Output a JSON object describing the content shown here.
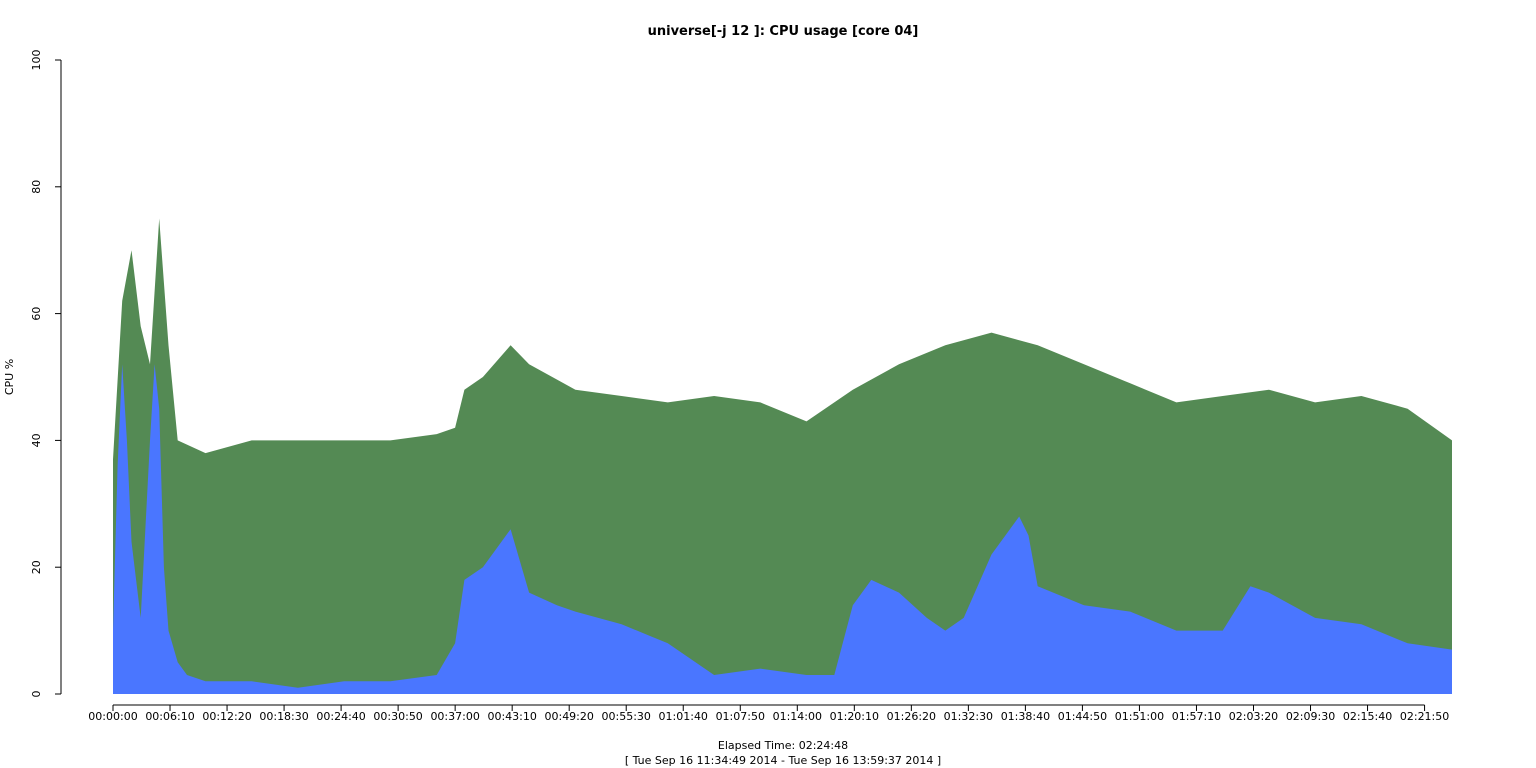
{
  "chart_data": {
    "type": "area",
    "title": "universe[-j 12  ]: CPU usage [core 04]",
    "ylabel": "CPU %",
    "xlabel": "Elapsed Time: 02:24:48",
    "subtitle": "[ Tue Sep 16 11:34:49 2014 - Tue Sep 16 13:59:37 2014 ]",
    "ylim": [
      0,
      100
    ],
    "xlim_seconds": [
      0,
      8688
    ],
    "y_ticks": [
      "0",
      "20",
      "40",
      "60",
      "80",
      "100"
    ],
    "x_ticks": [
      "00:00:00",
      "00:06:10",
      "00:12:20",
      "00:18:30",
      "00:24:40",
      "00:30:50",
      "00:37:00",
      "00:43:10",
      "00:49:20",
      "00:55:30",
      "01:01:40",
      "01:07:50",
      "01:14:00",
      "01:20:10",
      "01:26:20",
      "01:32:30",
      "01:38:40",
      "01:44:50",
      "01:51:00",
      "01:57:10",
      "02:03:20",
      "02:09:30",
      "02:15:40",
      "02:21:50"
    ],
    "colors": {
      "total": "#548a54",
      "base": "#4a76ff"
    },
    "series": [
      {
        "key": "total",
        "x": [
          "00:00:00",
          "00:01:00",
          "00:02:00",
          "00:03:00",
          "00:04:00",
          "00:05:00",
          "00:06:00",
          "00:07:00",
          "00:10:00",
          "00:15:00",
          "00:20:00",
          "00:25:00",
          "00:30:00",
          "00:35:00",
          "00:37:00",
          "00:38:00",
          "00:40:00",
          "00:43:00",
          "00:45:00",
          "00:50:00",
          "00:55:00",
          "01:00:00",
          "01:05:00",
          "01:10:00",
          "01:15:00",
          "01:20:00",
          "01:25:00",
          "01:30:00",
          "01:35:00",
          "01:40:00",
          "01:45:00",
          "01:50:00",
          "01:55:00",
          "02:00:00",
          "02:05:00",
          "02:10:00",
          "02:15:00",
          "02:20:00",
          "02:24:48"
        ],
        "y": [
          37,
          62,
          70,
          58,
          52,
          75,
          55,
          40,
          38,
          40,
          40,
          40,
          40,
          41,
          42,
          48,
          50,
          55,
          52,
          48,
          47,
          46,
          47,
          46,
          43,
          48,
          52,
          55,
          57,
          55,
          52,
          49,
          46,
          47,
          48,
          46,
          47,
          45,
          40
        ]
      },
      {
        "key": "base",
        "x": [
          "00:00:00",
          "00:00:30",
          "00:01:00",
          "00:01:30",
          "00:02:00",
          "00:02:30",
          "00:03:00",
          "00:04:00",
          "00:04:30",
          "00:05:00",
          "00:05:30",
          "00:06:00",
          "00:07:00",
          "00:08:00",
          "00:10:00",
          "00:15:00",
          "00:20:00",
          "00:25:00",
          "00:30:00",
          "00:35:00",
          "00:37:00",
          "00:38:00",
          "00:40:00",
          "00:43:00",
          "00:45:00",
          "00:48:00",
          "00:50:00",
          "00:55:00",
          "01:00:00",
          "01:05:00",
          "01:10:00",
          "01:15:00",
          "01:18:00",
          "01:20:00",
          "01:22:00",
          "01:25:00",
          "01:28:00",
          "01:30:00",
          "01:32:00",
          "01:35:00",
          "01:38:00",
          "01:39:00",
          "01:40:00",
          "01:45:00",
          "01:50:00",
          "01:55:00",
          "02:00:00",
          "02:03:00",
          "02:05:00",
          "02:10:00",
          "02:15:00",
          "02:20:00",
          "02:24:48"
        ],
        "y": [
          10,
          36,
          52,
          40,
          24,
          18,
          12,
          40,
          52,
          45,
          20,
          10,
          5,
          3,
          2,
          2,
          1,
          2,
          2,
          3,
          8,
          18,
          20,
          26,
          16,
          14,
          13,
          11,
          8,
          3,
          4,
          3,
          3,
          14,
          18,
          16,
          12,
          10,
          12,
          22,
          28,
          25,
          17,
          14,
          13,
          10,
          10,
          17,
          16,
          12,
          11,
          8,
          7
        ]
      }
    ]
  }
}
